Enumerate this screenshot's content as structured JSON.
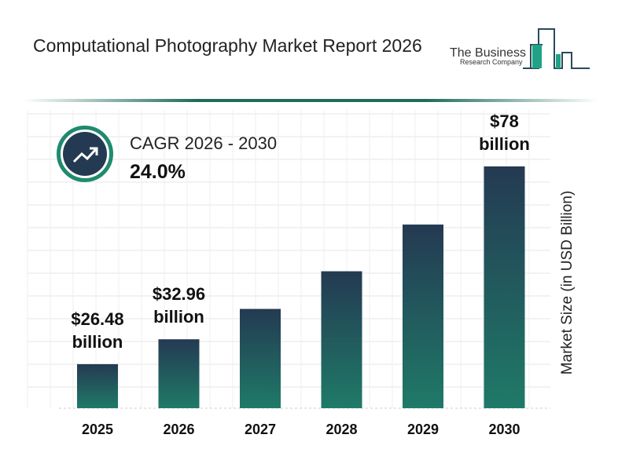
{
  "header": {
    "title": "Computational Photography Market Report 2026"
  },
  "logo": {
    "line1": "The Business",
    "line2": "Research Company"
  },
  "cagr": {
    "label": "CAGR 2026 - 2030",
    "value": "24.0%",
    "icon": "trending-up-icon"
  },
  "chart_data": {
    "type": "bar",
    "categories": [
      "2025",
      "2026",
      "2027",
      "2028",
      "2029",
      "2030"
    ],
    "values": [
      26.48,
      32.96,
      40.87,
      50.68,
      62.85,
      78
    ],
    "data_labels": [
      [
        "$26.48",
        "billion"
      ],
      [
        "$32.96",
        "billion"
      ],
      null,
      null,
      null,
      [
        "$78",
        "billion"
      ]
    ],
    "ylabel": "Market Size (in USD Billion)",
    "xlabel": "",
    "grid": true,
    "colors": {
      "top": "#243a52",
      "bottom": "#1f7a68"
    }
  }
}
